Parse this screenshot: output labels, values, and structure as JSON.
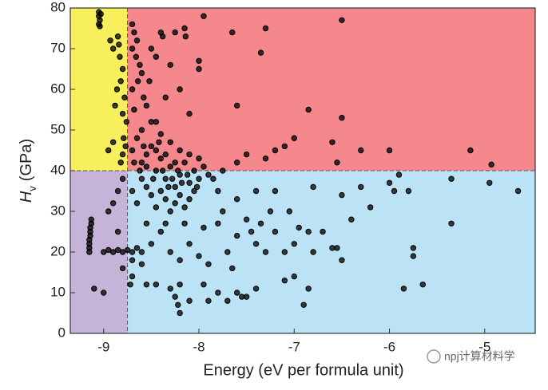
{
  "chart_data": {
    "type": "scatter",
    "xlabel": "Energy (eV per formula unit)",
    "ylabel": {
      "symbol": "H",
      "subscript": "v",
      "unit": "(GPa)"
    },
    "xlim": [
      -9.35,
      -4.47
    ],
    "ylim": [
      0,
      80
    ],
    "xticks": [
      -9,
      -8,
      -7,
      -6,
      -5
    ],
    "yticks": [
      0,
      10,
      20,
      30,
      40,
      50,
      60,
      70,
      80
    ],
    "thresholds": {
      "x": -8.75,
      "y": 40
    },
    "region_colors": {
      "upper_left": "#f7ef5b",
      "upper_right": "#f4888c",
      "lower_left": "#c6b3d8",
      "lower_right": "#bce3f5"
    },
    "color": "#000000",
    "watermark": "npj计算材料学",
    "x": [
      -9.05,
      -9.05,
      -9.04,
      -9.05,
      -9.04,
      -9.03,
      -8.85,
      -8.84,
      -8.83,
      -8.8,
      -8.82,
      -8.78,
      -8.8,
      -8.76,
      -8.79,
      -8.77,
      -8.8,
      -8.82,
      -8.9,
      -8.95,
      -8.88,
      -8.86,
      -8.9,
      -8.93,
      -9.15,
      -9.15,
      -9.15,
      -9.15,
      -9.14,
      -9.14,
      -9.14,
      -9.13,
      -9.13,
      -9.0,
      -8.95,
      -8.9,
      -8.85,
      -8.8,
      -8.75,
      -8.7,
      -8.65,
      -8.6,
      -9.1,
      -9.0,
      -8.95,
      -8.9,
      -8.85,
      -8.8,
      -8.85,
      -8.8,
      -8.7,
      -8.65,
      -8.6,
      -8.55,
      -8.5,
      -8.45,
      -8.4,
      -8.35,
      -8.3,
      -8.25,
      -8.2,
      -8.15,
      -8.1,
      -8.05,
      -8.0,
      -8.7,
      -8.65,
      -8.6,
      -8.55,
      -8.5,
      -8.45,
      -8.4,
      -8.35,
      -8.3,
      -8.25,
      -8.2,
      -8.15,
      -8.1,
      -8.05,
      -8.6,
      -8.5,
      -8.4,
      -8.3,
      -8.2,
      -8.1,
      -8.0,
      -7.95,
      -7.9,
      -8.55,
      -8.45,
      -8.35,
      -8.25,
      -8.62,
      -8.48,
      -8.38,
      -8.28,
      -8.18,
      -8.68,
      -8.58,
      -8.42,
      -8.32,
      -8.22,
      -8.12,
      -8.02,
      -7.85,
      -7.8,
      -7.75,
      -8.7,
      -8.68,
      -8.65,
      -8.7,
      -8.66,
      -8.62,
      -8.6,
      -8.64,
      -8.7,
      -8.58,
      -8.55,
      -8.68,
      -8.5,
      -8.45,
      -8.52,
      -8.4,
      -8.38,
      -8.25,
      -8.15,
      -8.14,
      -8.0,
      -8.0,
      -7.95,
      -7.65,
      -7.3,
      -7.6,
      -7.35,
      -6.85,
      -6.5,
      -6.5,
      -6.3,
      -6.0,
      -5.15,
      -4.93,
      -6.6,
      -7.0,
      -7.1,
      -7.2,
      -7.3,
      -7.5,
      -7.6,
      -6.55,
      -8.3,
      -8.2,
      -8.35,
      -8.1,
      -8.45,
      -6.5,
      -6.3,
      -6.0,
      -5.9,
      -5.95,
      -5.8,
      -5.35,
      -5.35,
      -4.95,
      -4.65,
      -5.75,
      -5.75,
      -5.65,
      -5.85,
      -6.5,
      -6.55,
      -6.8,
      -6.85,
      -6.7,
      -6.8,
      -6.9,
      -6.85,
      -7.0,
      -7.1,
      -7.2,
      -7.25,
      -7.35,
      -7.4,
      -7.45,
      -7.5,
      -7.3,
      -7.0,
      -7.1,
      -7.4,
      -7.5,
      -7.55,
      -7.6,
      -7.7,
      -7.8,
      -7.9,
      -7.95,
      -8.1,
      -8.2,
      -8.22,
      -8.25,
      -8.2,
      -8.3,
      -8.45,
      -8.55,
      -8.7,
      -8.72,
      -8.7,
      -8.6,
      -8.5,
      -8.4,
      -8.3,
      -8.2,
      -8.1,
      -8.0,
      -7.9,
      -7.8,
      -7.7,
      -7.6,
      -7.65,
      -8.55,
      -8.35,
      -8.15,
      -7.95,
      -7.75,
      -7.6,
      -7.4,
      -7.2,
      -7.05,
      -6.95,
      -6.6,
      -6.4,
      -6.2
    ],
    "values": [
      79,
      78,
      77,
      76,
      75.5,
      78.5,
      73,
      71,
      68,
      65,
      62,
      58,
      54,
      52,
      48,
      46,
      44,
      42,
      47,
      45,
      56,
      60,
      70,
      72,
      20,
      21,
      22,
      23,
      24,
      25,
      26,
      27,
      28,
      20,
      20.5,
      20,
      20.5,
      20,
      20.5,
      20,
      21,
      20,
      11,
      10,
      30,
      32,
      35,
      38,
      25,
      16,
      45,
      48,
      42,
      44,
      46,
      40,
      43,
      38,
      41,
      36,
      39,
      42,
      37,
      40,
      38,
      35,
      32,
      38,
      36,
      34,
      31,
      35,
      33,
      30,
      32,
      34,
      31,
      33,
      35,
      50,
      52,
      49,
      47,
      45,
      44,
      43,
      41,
      39,
      41,
      45,
      44,
      42,
      40,
      38,
      40,
      38,
      37,
      42,
      46,
      47,
      36,
      40,
      39,
      36,
      38,
      35,
      40,
      76,
      74,
      72,
      70,
      68,
      66,
      64,
      62,
      60,
      58,
      56,
      55,
      70,
      68,
      62,
      74,
      73,
      74,
      75,
      73,
      67,
      65,
      78,
      74,
      75,
      56,
      69,
      55,
      77,
      53,
      45,
      45,
      45,
      41.5,
      47,
      48,
      46,
      45,
      43,
      44,
      42,
      42,
      66,
      60,
      58,
      54,
      52,
      34,
      36,
      37,
      39,
      35,
      35,
      38,
      27,
      37,
      35,
      21,
      19,
      12,
      11,
      18,
      21,
      36,
      25,
      25,
      20,
      7,
      11,
      14,
      13,
      25,
      30,
      27,
      22,
      25,
      28,
      20,
      22,
      20,
      11,
      9,
      9,
      10,
      8,
      10,
      8,
      12,
      8,
      5,
      7,
      9,
      12,
      11,
      12,
      12,
      14,
      12,
      18,
      17,
      22,
      25,
      20,
      18,
      22,
      19,
      17,
      27,
      20,
      24,
      16,
      27,
      27,
      27,
      26,
      30,
      33,
      35,
      35,
      30,
      26,
      21,
      28,
      31
    ]
  }
}
